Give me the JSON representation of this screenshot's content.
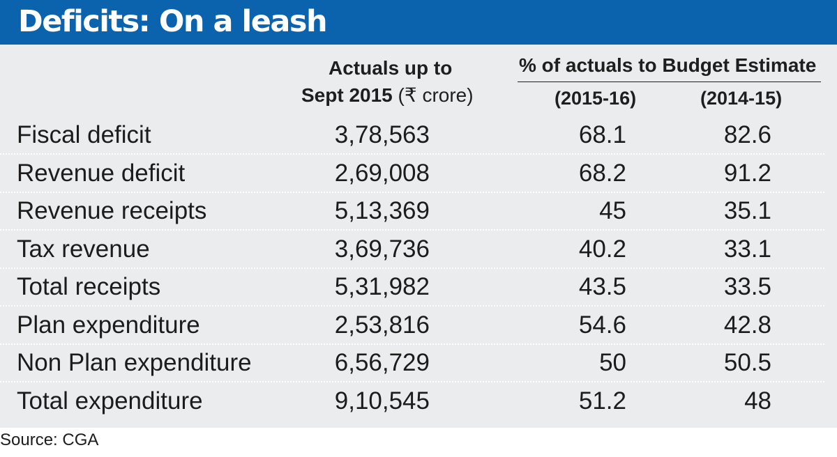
{
  "title": "Deficits: On a leash",
  "colors": {
    "banner": "#0b63ad",
    "panel": "#ebeced",
    "text": "#1c1c1c"
  },
  "headers": {
    "actuals_line1": "Actuals up to",
    "actuals_line2": "Sept 2015",
    "actuals_unit": "(₹ crore)",
    "pct_group": "% of actuals to Budget Estimate",
    "col_2015_16": "(2015-16)",
    "col_2014_15": "(2014-15)"
  },
  "chart_data": {
    "type": "table",
    "title": "Deficits: On a leash",
    "columns": [
      "",
      "Actuals up to Sept 2015 (₹ crore)",
      "(2015-16)",
      "(2014-15)"
    ],
    "rows": [
      {
        "label": "Fiscal deficit",
        "actual": "3,78,563",
        "p1516": "68.1",
        "p1415": "82.6"
      },
      {
        "label": "Revenue deficit",
        "actual": "2,69,008",
        "p1516": "68.2",
        "p1415": "91.2"
      },
      {
        "label": "Revenue receipts",
        "actual": "5,13,369",
        "p1516": "45",
        "p1415": "35.1"
      },
      {
        "label": "Tax revenue",
        "actual": "3,69,736",
        "p1516": "40.2",
        "p1415": "33.1"
      },
      {
        "label": "Total receipts",
        "actual": "5,31,982",
        "p1516": "43.5",
        "p1415": "33.5"
      },
      {
        "label": "Plan expenditure",
        "actual": "2,53,816",
        "p1516": "54.6",
        "p1415": "42.8"
      },
      {
        "label": "Non Plan expenditure",
        "actual": "6,56,729",
        "p1516": "50",
        "p1415": "50.5"
      },
      {
        "label": "Total expenditure",
        "actual": "9,10,545",
        "p1516": "51.2",
        "p1415": "48"
      }
    ]
  },
  "source": "Source: CGA"
}
